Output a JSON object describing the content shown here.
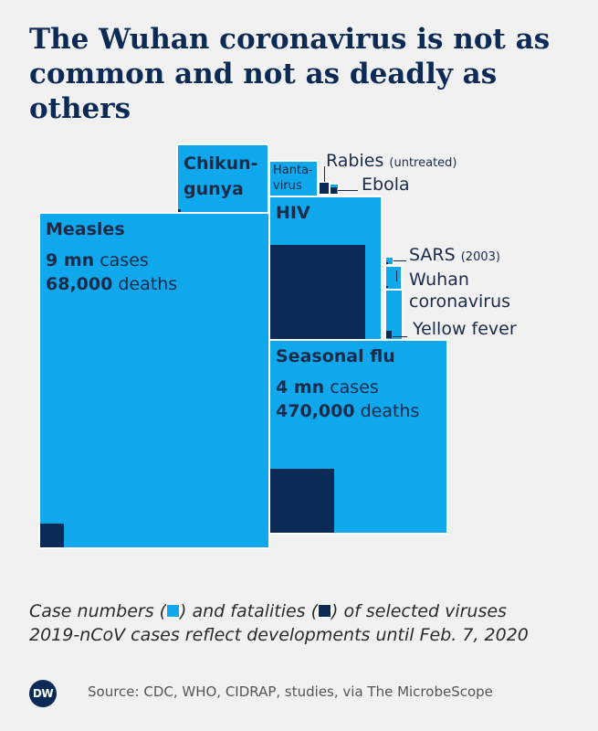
{
  "title": "The Wuhan coronavirus is not as common and not as deadly as others",
  "chart_data": {
    "type": "proportional-squares",
    "unit_cases": "cases",
    "unit_deaths": "deaths",
    "viruses": [
      {
        "name": "Measles",
        "cases_label": "9 mn",
        "deaths_label": "68,000",
        "approx_cases": 9000000,
        "approx_deaths": 68000
      },
      {
        "name": "Seasonal flu",
        "cases_label": "4 mn",
        "deaths_label": "470,000",
        "approx_cases": 4000000,
        "approx_deaths": 470000
      },
      {
        "name": "HIV",
        "approx_cases": 1800000,
        "approx_deaths": 940000
      },
      {
        "name": "Chikun-",
        "name2": "gunya",
        "approx_cases": 690000,
        "approx_deaths": 400
      },
      {
        "name": "Hanta-",
        "name2": "virus",
        "approx_cases": 200000,
        "approx_deaths": 2000
      },
      {
        "name": "Rabies",
        "note": "(untreated)",
        "approx_cases": 60000,
        "approx_deaths": 59000
      },
      {
        "name": "Ebola",
        "approx_cases": 28600,
        "approx_deaths": 11300
      },
      {
        "name": "SARS",
        "note": "(2003)",
        "approx_cases": 8100,
        "approx_deaths": 774
      },
      {
        "name": "Wuhan",
        "name2": "coronavirus",
        "approx_cases": 34000,
        "approx_deaths": 720
      },
      {
        "name": "Yellow fever",
        "approx_cases": 200000,
        "approx_deaths": 30000
      }
    ]
  },
  "caption": {
    "line1_a": "Case numbers (",
    "line1_b": ") and fatalities (",
    "line1_c": ") of selected viruses",
    "line2": "2019-nCoV cases reflect developments until Feb. 7, 2020"
  },
  "footer": {
    "logo": "DW",
    "source": "Source: CDC, WHO, CIDRAP, studies, via The MicrobeScope"
  },
  "colors": {
    "cases": "#0fa8ec",
    "deaths": "#0b2a55",
    "background": "#f1f1f1",
    "title": "#0b2a55"
  }
}
